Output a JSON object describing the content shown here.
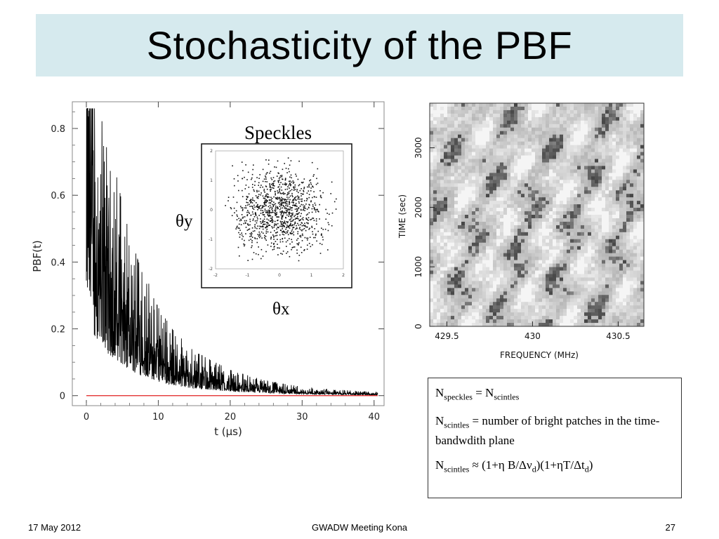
{
  "slide": {
    "title": "Stochasticity of the PBF"
  },
  "chart_data": [
    {
      "type": "line",
      "xlabel": "t  (μs)",
      "ylabel": "PBF(t)",
      "xlim": [
        0,
        41
      ],
      "ylim": [
        -0.03,
        0.88
      ],
      "xticks": [
        0,
        10,
        20,
        30,
        40
      ],
      "yticks": [
        0,
        0.2,
        0.4,
        0.6,
        0.8
      ],
      "ytick_labels": [
        "0",
        "0.2",
        "0.4",
        "0.6",
        "0.8"
      ],
      "baseline": 0,
      "series": [
        {
          "x": [
            0,
            0.2,
            0.4,
            0.6,
            0.8,
            1,
            1.5,
            2,
            3,
            4,
            5,
            6,
            7,
            8,
            10,
            12,
            15,
            20,
            25,
            30,
            35,
            40
          ],
          "y": [
            0.45,
            0.82,
            0.6,
            0.85,
            0.58,
            0.52,
            0.48,
            0.43,
            0.36,
            0.31,
            0.26,
            0.22,
            0.19,
            0.16,
            0.12,
            0.09,
            0.06,
            0.035,
            0.02,
            0.012,
            0.008,
            0.005
          ]
        }
      ],
      "inset": {
        "title": "Speckles",
        "xlabel": "θx",
        "ylabel": "θy",
        "type": "scatter",
        "xlim": [
          -2,
          2
        ],
        "ylim": [
          -2,
          2
        ],
        "ticks": [
          -2,
          -1,
          0,
          1,
          2
        ]
      }
    },
    {
      "type": "heatmap",
      "xlabel": "FREQUENCY (MHz)",
      "ylabel": "TIME (sec)",
      "xticks": [
        429.5,
        430,
        430.5
      ],
      "xtick_labels": [
        "429.5",
        "430",
        "430.5"
      ],
      "yticks": [
        0,
        1000,
        2000,
        3000
      ],
      "xlim": [
        429.4,
        430.65
      ],
      "ylim": [
        0,
        3750
      ]
    }
  ],
  "notes": {
    "line1": {
      "n": "N",
      "sub1": "speckles",
      "eq": " = N",
      "sub2": "scintles"
    },
    "line2": {
      "n": "N",
      "sub1": "scintles",
      "rest": "  = number of bright patches in the time-bandwdith plane"
    },
    "line3": {
      "n": "N",
      "sub1": "scintles",
      "a": " ≈ (1+η B/Δν",
      "sub2": "d",
      "b": ")(1+ηT/Δt",
      "sub3": "d",
      "c": ")"
    }
  },
  "footer": {
    "date": "17 May 2012",
    "event": "GWADW Meeting Kona",
    "page": "27"
  },
  "colors": {
    "title_bg": "#d6eaee",
    "baseline": "#e02020",
    "trace": "#000000"
  }
}
